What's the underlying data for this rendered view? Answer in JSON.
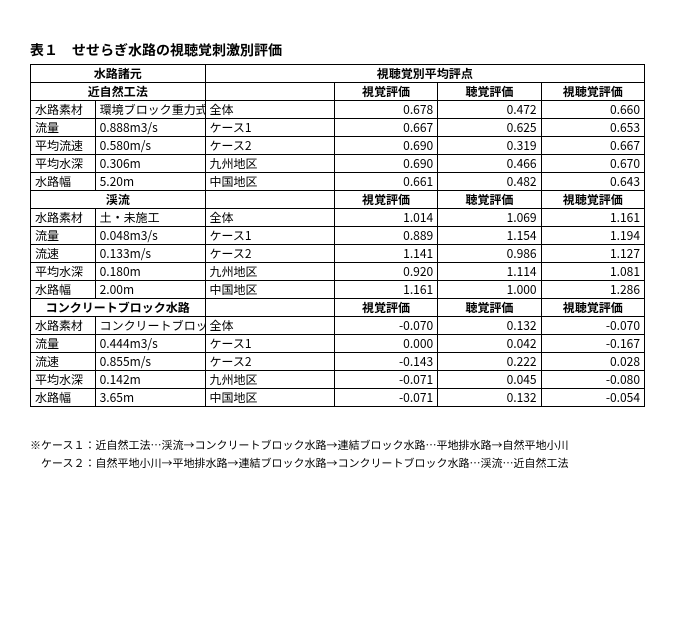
{
  "title": "表１　せせらぎ水路の視聴覚刺激別評価",
  "topHeaders": {
    "left": "水路諸元",
    "right": "視聴覚別平均評点",
    "subLeft": "近自然工法",
    "col1": "視覚評価",
    "col2": "聴覚評価",
    "col3": "視聴覚評価"
  },
  "sections": [
    {
      "name": "近自然工法",
      "specRows": [
        {
          "label": "水路素材",
          "value": "環境ブロック重力式"
        },
        {
          "label": "流量",
          "value": "0.888m3/s"
        },
        {
          "label": "平均流速",
          "value": "0.580m/s"
        },
        {
          "label": "平均水深",
          "value": "0.306m"
        },
        {
          "label": "水路幅",
          "value": "5.20m"
        }
      ],
      "evalRows": [
        {
          "label": "全体",
          "v1": "0.678",
          "v2": "0.472",
          "v3": "0.660"
        },
        {
          "label": "ケース1",
          "v1": "0.667",
          "v2": "0.625",
          "v3": "0.653"
        },
        {
          "label": "ケース2",
          "v1": "0.690",
          "v2": "0.319",
          "v3": "0.667"
        },
        {
          "label": "九州地区",
          "v1": "0.690",
          "v2": "0.466",
          "v3": "0.670"
        },
        {
          "label": "中国地区",
          "v1": "0.661",
          "v2": "0.482",
          "v3": "0.643"
        }
      ]
    },
    {
      "name": "渓流",
      "specRows": [
        {
          "label": "水路素材",
          "value": "土・未施工"
        },
        {
          "label": "流量",
          "value": "0.048m3/s"
        },
        {
          "label": "流速",
          "value": "0.133m/s"
        },
        {
          "label": "平均水深",
          "value": "0.180m"
        },
        {
          "label": "水路幅",
          "value": "2.00m"
        }
      ],
      "evalRows": [
        {
          "label": "全体",
          "v1": "1.014",
          "v2": "1.069",
          "v3": "1.161"
        },
        {
          "label": "ケース1",
          "v1": "0.889",
          "v2": "1.154",
          "v3": "1.194"
        },
        {
          "label": "ケース2",
          "v1": "1.141",
          "v2": "0.986",
          "v3": "1.127"
        },
        {
          "label": "九州地区",
          "v1": "0.920",
          "v2": "1.114",
          "v3": "1.081"
        },
        {
          "label": "中国地区",
          "v1": "1.161",
          "v2": "1.000",
          "v3": "1.286"
        }
      ]
    },
    {
      "name": "コンクリートブロック水路",
      "specRows": [
        {
          "label": "水路素材",
          "value": "コンクリートブロック"
        },
        {
          "label": "流量",
          "value": "0.444m3/s"
        },
        {
          "label": "流速",
          "value": "0.855m/s"
        },
        {
          "label": "平均水深",
          "value": "0.142m"
        },
        {
          "label": "水路幅",
          "value": "3.65m"
        }
      ],
      "evalRows": [
        {
          "label": "全体",
          "v1": "-0.070",
          "v2": "0.132",
          "v3": "-0.070"
        },
        {
          "label": "ケース1",
          "v1": "0.000",
          "v2": "0.042",
          "v3": "-0.167"
        },
        {
          "label": "ケース2",
          "v1": "-0.143",
          "v2": "0.222",
          "v3": "0.028"
        },
        {
          "label": "九州地区",
          "v1": "-0.071",
          "v2": "0.045",
          "v3": "-0.080"
        },
        {
          "label": "中国地区",
          "v1": "-0.071",
          "v2": "0.132",
          "v3": "-0.054"
        }
      ]
    }
  ],
  "footnotes": [
    "※ケース１：近自然工法…渓流→コンクリートブロック水路→連結ブロック水路…平地排水路→自然平地小川",
    "　ケース２：自然平地小川→平地排水路→連結ブロック水路→コンクリートブロック水路…渓流…近自然工法"
  ]
}
